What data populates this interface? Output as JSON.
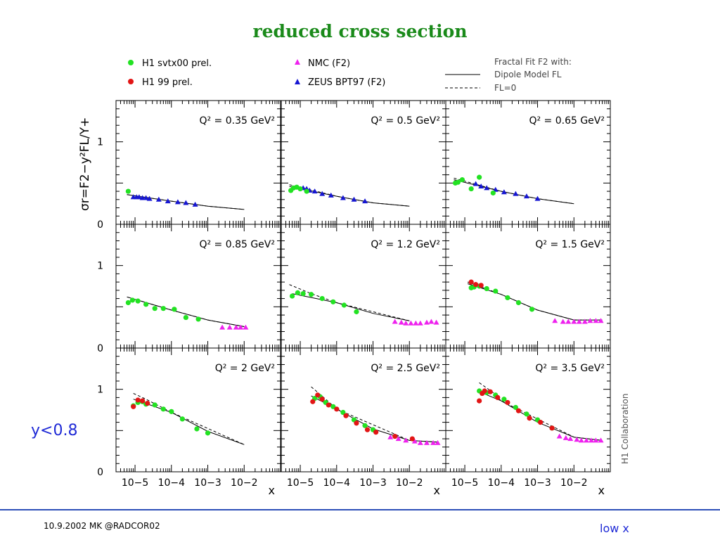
{
  "slide": {
    "title": "reduced cross section",
    "ycut": "y<0.8",
    "footer_left": "10.9.2002 MK @RADCOR02",
    "footer_right": "low x"
  },
  "colors": {
    "h1_svtx": "#22e222",
    "h1_99": "#e21515",
    "nmc": "#ee22ee",
    "zeus": "#1616d2",
    "title": "#1a8a1a",
    "accent": "#1f2ad6"
  },
  "chart_data": {
    "type": "scatter",
    "layout": "3x3 grid of panels",
    "ylabel": "σr=F2−y²FL/Y+",
    "xlabel": "x",
    "x_scale": "log",
    "xlim": [
      3e-06,
      0.1
    ],
    "ylim": [
      0,
      1.5
    ],
    "y_tick_labels": [
      "0",
      "1"
    ],
    "x_tick_labels": [
      "10−5",
      "10−4",
      "10−3",
      "10−2"
    ],
    "credit": "H1 Collaboration",
    "legend_placement": "top",
    "legend": {
      "h1_svtx": "H1 svtx00 prel.",
      "h1_99": "H1 99 prel.",
      "nmc": "NMC (F2)",
      "zeus": "ZEUS BPT97 (F2)",
      "fit_header": "Fractal Fit F2 with:",
      "fit_dipole": "Dipole Model FL",
      "fit_fl0": "FL=0"
    },
    "panels": [
      {
        "q2_label": "Q² = 0.35 GeV²",
        "series": {
          "h1_svtx": [
            [
              6.5e-06,
              0.4
            ]
          ],
          "h1_99": [],
          "zeus": [
            [
              9e-06,
              0.33
            ],
            [
              1.1e-05,
              0.33
            ],
            [
              1.3e-05,
              0.33
            ],
            [
              1.6e-05,
              0.32
            ],
            [
              2e-05,
              0.32
            ],
            [
              2.5e-05,
              0.31
            ],
            [
              4.5e-05,
              0.3
            ],
            [
              8e-05,
              0.28
            ],
            [
              0.00015,
              0.27
            ],
            [
              0.00025,
              0.26
            ],
            [
              0.00045,
              0.24
            ]
          ],
          "nmc": []
        },
        "fit_dipole": [
          [
            6e-06,
            0.36
          ],
          [
            0.0001,
            0.28
          ],
          [
            0.001,
            0.22
          ],
          [
            0.01,
            0.18
          ]
        ],
        "fit_fl0": [
          [
            6e-06,
            0.36
          ],
          [
            0.0001,
            0.28
          ],
          [
            0.001,
            0.22
          ],
          [
            0.01,
            0.18
          ]
        ]
      },
      {
        "q2_label": "Q² = 0.5 GeV²",
        "series": {
          "h1_svtx": [
            [
              5.5e-06,
              0.41
            ],
            [
              6.5e-06,
              0.44
            ],
            [
              8e-06,
              0.45
            ],
            [
              1e-05,
              0.43
            ],
            [
              1.5e-05,
              0.4
            ]
          ],
          "h1_99": [],
          "zeus": [
            [
              1.2e-05,
              0.44
            ],
            [
              1.5e-05,
              0.43
            ],
            [
              1.8e-05,
              0.41
            ],
            [
              2.5e-05,
              0.4
            ],
            [
              4e-05,
              0.37
            ],
            [
              7e-05,
              0.35
            ],
            [
              0.00015,
              0.32
            ],
            [
              0.0003,
              0.3
            ],
            [
              0.0006,
              0.28
            ]
          ],
          "nmc": []
        },
        "fit_dipole": [
          [
            5e-06,
            0.46
          ],
          [
            0.0001,
            0.34
          ],
          [
            0.001,
            0.26
          ],
          [
            0.01,
            0.22
          ]
        ],
        "fit_fl0": [
          [
            5e-06,
            0.48
          ],
          [
            0.0001,
            0.34
          ],
          [
            0.001,
            0.26
          ],
          [
            0.01,
            0.22
          ]
        ]
      },
      {
        "q2_label": "Q² = 0.65 GeV²",
        "series": {
          "h1_svtx": [
            [
              5.5e-06,
              0.5
            ],
            [
              6.5e-06,
              0.51
            ],
            [
              8.5e-06,
              0.54
            ],
            [
              1.5e-05,
              0.43
            ],
            [
              2.5e-05,
              0.57
            ],
            [
              6e-05,
              0.38
            ]
          ],
          "h1_99": [],
          "zeus": [
            [
              2e-05,
              0.49
            ],
            [
              2.8e-05,
              0.46
            ],
            [
              4e-05,
              0.44
            ],
            [
              7e-05,
              0.42
            ],
            [
              0.00012,
              0.39
            ],
            [
              0.00025,
              0.37
            ],
            [
              0.0005,
              0.34
            ],
            [
              0.001,
              0.31
            ]
          ],
          "nmc": []
        },
        "fit_dipole": [
          [
            5e-06,
            0.54
          ],
          [
            0.0001,
            0.4
          ],
          [
            0.001,
            0.31
          ],
          [
            0.01,
            0.25
          ]
        ],
        "fit_fl0": [
          [
            5e-06,
            0.56
          ],
          [
            0.0001,
            0.4
          ],
          [
            0.001,
            0.31
          ],
          [
            0.01,
            0.25
          ]
        ]
      },
      {
        "q2_label": "Q² = 0.85 GeV²",
        "series": {
          "h1_svtx": [
            [
              6.5e-06,
              0.55
            ],
            [
              8.5e-06,
              0.58
            ],
            [
              1.2e-05,
              0.57
            ],
            [
              2e-05,
              0.53
            ],
            [
              3.5e-05,
              0.48
            ],
            [
              6e-05,
              0.48
            ],
            [
              0.00012,
              0.47
            ],
            [
              0.00025,
              0.37
            ],
            [
              0.00055,
              0.35
            ]
          ],
          "h1_99": [],
          "zeus": [],
          "nmc": [
            [
              0.0025,
              0.25
            ],
            [
              0.004,
              0.25
            ],
            [
              0.006,
              0.25
            ],
            [
              0.008,
              0.25
            ],
            [
              0.011,
              0.25
            ]
          ]
        },
        "fit_dipole": [
          [
            6e-06,
            0.62
          ],
          [
            0.0001,
            0.46
          ],
          [
            0.001,
            0.34
          ],
          [
            0.01,
            0.26
          ]
        ],
        "fit_fl0": [
          [
            6e-06,
            0.62
          ],
          [
            0.0001,
            0.46
          ],
          [
            0.001,
            0.34
          ],
          [
            0.01,
            0.26
          ]
        ]
      },
      {
        "q2_label": "Q² = 1.2 GeV²",
        "series": {
          "h1_svtx": [
            [
              6e-06,
              0.63
            ],
            [
              8.5e-06,
              0.67
            ],
            [
              1.2e-05,
              0.66
            ],
            [
              2e-05,
              0.65
            ],
            [
              4e-05,
              0.6
            ],
            [
              8e-05,
              0.56
            ],
            [
              0.00016,
              0.52
            ],
            [
              0.00035,
              0.44
            ]
          ],
          "h1_99": [],
          "zeus": [],
          "nmc": [
            [
              0.004,
              0.32
            ],
            [
              0.006,
              0.31
            ],
            [
              0.008,
              0.3
            ],
            [
              0.011,
              0.3
            ],
            [
              0.015,
              0.3
            ],
            [
              0.02,
              0.3
            ],
            [
              0.03,
              0.31
            ],
            [
              0.04,
              0.32
            ],
            [
              0.055,
              0.31
            ]
          ]
        },
        "fit_dipole": [
          [
            6e-06,
            0.66
          ],
          [
            0.0001,
            0.55
          ],
          [
            0.001,
            0.42
          ],
          [
            0.01,
            0.33
          ]
        ],
        "fit_fl0": [
          [
            5e-06,
            0.77
          ],
          [
            2e-05,
            0.66
          ],
          [
            0.0001,
            0.55
          ],
          [
            0.01,
            0.33
          ]
        ]
      },
      {
        "q2_label": "Q² = 1.5 GeV²",
        "series": {
          "h1_svtx": [
            [
              1.5e-05,
              0.73
            ],
            [
              1.8e-05,
              0.74
            ],
            [
              2.5e-05,
              0.75
            ],
            [
              4e-05,
              0.72
            ],
            [
              7e-05,
              0.69
            ],
            [
              0.00015,
              0.61
            ],
            [
              0.0003,
              0.55
            ],
            [
              0.0007,
              0.47
            ]
          ],
          "h1_99": [
            [
              1.5e-05,
              0.8
            ],
            [
              2e-05,
              0.77
            ],
            [
              2.8e-05,
              0.76
            ]
          ],
          "zeus": [],
          "nmc": [
            [
              0.003,
              0.33
            ],
            [
              0.005,
              0.32
            ],
            [
              0.007,
              0.32
            ],
            [
              0.01,
              0.32
            ],
            [
              0.014,
              0.32
            ],
            [
              0.02,
              0.32
            ],
            [
              0.028,
              0.33
            ],
            [
              0.04,
              0.33
            ],
            [
              0.055,
              0.33
            ]
          ]
        },
        "fit_dipole": [
          [
            1.2e-05,
            0.78
          ],
          [
            0.0001,
            0.65
          ],
          [
            0.001,
            0.46
          ],
          [
            0.01,
            0.34
          ],
          [
            0.06,
            0.34
          ]
        ],
        "fit_fl0": [
          [
            1.2e-05,
            0.8
          ],
          [
            0.0001,
            0.65
          ],
          [
            0.001,
            0.46
          ],
          [
            0.01,
            0.34
          ],
          [
            0.06,
            0.34
          ]
        ]
      },
      {
        "q2_label": "Q² = 2 GeV²",
        "series": {
          "h1_svtx": [
            [
              9e-06,
              0.8
            ],
            [
              1.2e-05,
              0.84
            ],
            [
              1.6e-05,
              0.85
            ],
            [
              2e-05,
              0.82
            ],
            [
              3.5e-05,
              0.81
            ],
            [
              6e-05,
              0.76
            ],
            [
              0.0001,
              0.73
            ],
            [
              0.0002,
              0.64
            ],
            [
              0.0005,
              0.52
            ],
            [
              0.001,
              0.47
            ]
          ],
          "h1_99": [
            [
              9e-06,
              0.79
            ],
            [
              1.2e-05,
              0.87
            ],
            [
              1.6e-05,
              0.86
            ],
            [
              2.2e-05,
              0.83
            ]
          ],
          "zeus": [],
          "nmc": []
        },
        "fit_dipole": [
          [
            9e-06,
            0.88
          ],
          [
            0.0001,
            0.72
          ],
          [
            0.001,
            0.49
          ],
          [
            0.01,
            0.33
          ]
        ],
        "fit_fl0": [
          [
            9e-06,
            0.95
          ],
          [
            2e-05,
            0.88
          ],
          [
            0.0001,
            0.72
          ],
          [
            0.01,
            0.33
          ]
        ]
      },
      {
        "q2_label": "Q² = 2.5 GeV²",
        "series": {
          "h1_svtx": [
            [
              2.5e-05,
              0.89
            ],
            [
              3.5e-05,
              0.91
            ],
            [
              5e-05,
              0.84
            ],
            [
              8e-05,
              0.79
            ],
            [
              0.00015,
              0.72
            ],
            [
              0.0003,
              0.63
            ],
            [
              0.0006,
              0.56
            ],
            [
              0.001,
              0.51
            ]
          ],
          "h1_99": [
            [
              2.2e-05,
              0.85
            ],
            [
              3e-05,
              0.93
            ],
            [
              4e-05,
              0.88
            ],
            [
              6e-05,
              0.81
            ],
            [
              0.0001,
              0.76
            ],
            [
              0.00018,
              0.68
            ],
            [
              0.00035,
              0.59
            ],
            [
              0.0007,
              0.51
            ],
            [
              0.0012,
              0.48
            ],
            [
              0.004,
              0.43
            ],
            [
              0.012,
              0.4
            ]
          ],
          "zeus": [],
          "nmc": [
            [
              0.003,
              0.42
            ],
            [
              0.005,
              0.4
            ],
            [
              0.008,
              0.38
            ],
            [
              0.014,
              0.37
            ],
            [
              0.02,
              0.35
            ],
            [
              0.03,
              0.35
            ],
            [
              0.045,
              0.35
            ],
            [
              0.06,
              0.35
            ]
          ]
        },
        "fit_dipole": [
          [
            2e-05,
            0.92
          ],
          [
            0.0001,
            0.76
          ],
          [
            0.001,
            0.52
          ],
          [
            0.01,
            0.38
          ],
          [
            0.06,
            0.36
          ]
        ],
        "fit_fl0": [
          [
            2e-05,
            1.03
          ],
          [
            5e-05,
            0.88
          ],
          [
            0.0001,
            0.76
          ],
          [
            0.01,
            0.38
          ],
          [
            0.06,
            0.36
          ]
        ]
      },
      {
        "q2_label": "Q² = 3.5 GeV²",
        "series": {
          "h1_svtx": [
            [
              2.5e-05,
              0.98
            ],
            [
              4e-05,
              0.96
            ],
            [
              7e-05,
              0.93
            ],
            [
              0.00012,
              0.88
            ],
            [
              0.00025,
              0.78
            ],
            [
              0.0005,
              0.7
            ],
            [
              0.001,
              0.63
            ],
            [
              0.0025,
              0.53
            ]
          ],
          "h1_99": [
            [
              2.5e-05,
              0.86
            ],
            [
              3e-05,
              0.95
            ],
            [
              3.5e-05,
              0.98
            ],
            [
              5e-05,
              0.97
            ],
            [
              8e-05,
              0.9
            ],
            [
              0.00015,
              0.84
            ],
            [
              0.0003,
              0.74
            ],
            [
              0.0006,
              0.65
            ],
            [
              0.0012,
              0.6
            ],
            [
              0.0025,
              0.53
            ]
          ],
          "zeus": [],
          "nmc": [
            [
              0.004,
              0.43
            ],
            [
              0.006,
              0.41
            ],
            [
              0.008,
              0.4
            ],
            [
              0.012,
              0.39
            ],
            [
              0.016,
              0.38
            ],
            [
              0.022,
              0.38
            ],
            [
              0.03,
              0.38
            ],
            [
              0.04,
              0.38
            ],
            [
              0.055,
              0.38
            ]
          ]
        },
        "fit_dipole": [
          [
            2.5e-05,
            0.97
          ],
          [
            0.0001,
            0.86
          ],
          [
            0.001,
            0.6
          ],
          [
            0.01,
            0.42
          ],
          [
            0.06,
            0.38
          ]
        ],
        "fit_fl0": [
          [
            2.5e-05,
            1.08
          ],
          [
            6e-05,
            0.96
          ],
          [
            0.0001,
            0.86
          ],
          [
            0.01,
            0.42
          ],
          [
            0.06,
            0.38
          ]
        ]
      }
    ]
  }
}
